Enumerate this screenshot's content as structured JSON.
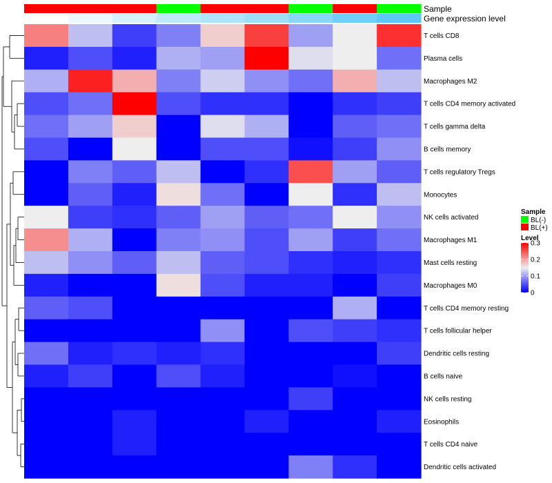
{
  "chart_data": {
    "type": "heatmap",
    "annotation_labels": [
      "Sample",
      "Gene expression level"
    ],
    "sample_annotation": [
      "BL(+)",
      "BL(+)",
      "BL(+)",
      "BL(-)",
      "BL(+)",
      "BL(+)",
      "BL(-)",
      "BL(+)",
      "BL(-)"
    ],
    "gene_expression_annotation": [
      0.0,
      0.12,
      0.25,
      0.4,
      0.5,
      0.6,
      0.72,
      0.88,
      1.0
    ],
    "rows": [
      "T cells CD8",
      "Plasma cells",
      "Macrophages M2",
      "T cells CD4 memory activated",
      "T cells gamma delta",
      "B cells memory",
      "T cells regulatory  Tregs",
      "Monocytes",
      "NK cells activated",
      "Macrophages M1",
      "Mast cells resting",
      "Macrophages M0",
      "T cells CD4 memory resting",
      "T cells follicular helper",
      "Dendritic cells resting",
      "B cells naive",
      "NK cells resting",
      "Eosinophils",
      "T cells CD4 naive",
      "Dendritic cells activated"
    ],
    "values": [
      [
        0.22,
        0.12,
        0.04,
        0.08,
        0.17,
        0.26,
        0.1,
        0.15,
        0.27
      ],
      [
        0.02,
        0.05,
        0.02,
        0.11,
        0.1,
        0.3,
        0.14,
        0.15,
        0.07
      ],
      [
        0.11,
        0.28,
        0.19,
        0.08,
        0.13,
        0.09,
        0.07,
        0.19,
        0.12
      ],
      [
        0.05,
        0.07,
        0.3,
        0.05,
        0.03,
        0.03,
        0.0,
        0.03,
        0.04
      ],
      [
        0.07,
        0.1,
        0.17,
        0.0,
        0.14,
        0.11,
        0.0,
        0.06,
        0.07
      ],
      [
        0.05,
        0.0,
        0.15,
        0.0,
        0.05,
        0.05,
        0.01,
        0.04,
        0.09
      ],
      [
        0.0,
        0.08,
        0.06,
        0.12,
        0.0,
        0.03,
        0.25,
        0.1,
        0.06
      ],
      [
        0.0,
        0.06,
        0.02,
        0.16,
        0.07,
        0.0,
        0.15,
        0.03,
        0.12
      ],
      [
        0.15,
        0.04,
        0.03,
        0.06,
        0.1,
        0.06,
        0.07,
        0.15,
        0.09
      ],
      [
        0.21,
        0.11,
        0.0,
        0.08,
        0.09,
        0.05,
        0.1,
        0.04,
        0.07
      ],
      [
        0.12,
        0.09,
        0.06,
        0.12,
        0.06,
        0.05,
        0.03,
        0.02,
        0.03
      ],
      [
        0.02,
        0.0,
        0.0,
        0.16,
        0.05,
        0.02,
        0.02,
        0.0,
        0.04
      ],
      [
        0.06,
        0.05,
        0.0,
        0.0,
        0.0,
        0.0,
        0.0,
        0.11,
        0.0
      ],
      [
        0.0,
        0.0,
        0.0,
        0.0,
        0.09,
        0.0,
        0.05,
        0.04,
        0.03
      ],
      [
        0.07,
        0.02,
        0.03,
        0.02,
        0.03,
        0.0,
        0.0,
        0.0,
        0.04
      ],
      [
        0.02,
        0.04,
        0.0,
        0.05,
        0.02,
        0.0,
        0.0,
        0.01,
        0.0
      ],
      [
        0.0,
        0.0,
        0.0,
        0.0,
        0.0,
        0.0,
        0.04,
        0.0,
        0.0
      ],
      [
        0.0,
        0.0,
        0.02,
        0.0,
        0.0,
        0.02,
        0.0,
        0.0,
        0.02
      ],
      [
        0.0,
        0.0,
        0.02,
        0.0,
        0.0,
        0.0,
        0.0,
        0.0,
        0.0
      ],
      [
        0.0,
        0.0,
        0.0,
        0.0,
        0.0,
        0.0,
        0.08,
        0.03,
        0.0
      ]
    ],
    "color_scale": {
      "low": "#0000ff",
      "mid": "#eeeeee",
      "high": "#ff0000",
      "min": 0,
      "mid_value": 0.15,
      "max": 0.3
    },
    "legend": {
      "sample": {
        "title": "Sample",
        "entries": [
          {
            "label": "BL(-)",
            "color": "#00ff00"
          },
          {
            "label": "BL(+)",
            "color": "#ff0000"
          }
        ]
      },
      "level": {
        "title": "Level",
        "ticks": [
          {
            "value": 0.3,
            "label": "0.3"
          },
          {
            "value": 0.2,
            "label": "0.2"
          },
          {
            "value": 0.1,
            "label": "0.1"
          },
          {
            "value": 0,
            "label": "0"
          }
        ]
      }
    },
    "gene_expression_colors": {
      "low": "#ffffff",
      "high": "#5bc8f5"
    },
    "legend_placement": "right",
    "row_dendrogram": "left"
  }
}
